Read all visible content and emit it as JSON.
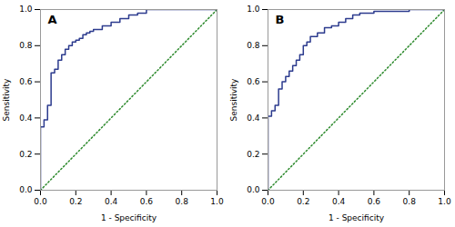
{
  "chart_data": [
    {
      "type": "line",
      "title": "A",
      "xlabel": "1 - Specificity",
      "ylabel": "Sensitivity",
      "xlim": [
        0.0,
        1.0
      ],
      "ylim": [
        0.0,
        1.0
      ],
      "xticks": [
        {
          "value": 0.0,
          "label": "0.0"
        },
        0.2,
        0.4,
        0.6,
        0.8,
        {
          "value": 1.0,
          "label": "1.0"
        }
      ],
      "yticks": [
        {
          "value": 0.0,
          "label": "0.0"
        },
        0.2,
        0.4,
        0.6,
        0.8,
        {
          "value": 1.0,
          "label": "1.0"
        }
      ],
      "grid": false,
      "series": [
        {
          "type": "line",
          "line_style": "dotted",
          "color": "#2d8a2d",
          "x": [
            0,
            1
          ],
          "values": [
            0,
            1
          ]
        },
        {
          "type": "step",
          "line_style": "solid",
          "color": "#2c3b8e",
          "x": [
            0.0,
            0.0,
            0.02,
            0.04,
            0.06,
            0.06,
            0.08,
            0.1,
            0.1,
            0.12,
            0.14,
            0.16,
            0.18,
            0.2,
            0.22,
            0.24,
            0.26,
            0.28,
            0.3,
            0.35,
            0.4,
            0.45,
            0.5,
            0.55,
            0.6,
            1.0
          ],
          "values": [
            0.0,
            0.35,
            0.39,
            0.47,
            0.52,
            0.65,
            0.67,
            0.7,
            0.72,
            0.75,
            0.78,
            0.8,
            0.82,
            0.83,
            0.84,
            0.86,
            0.87,
            0.88,
            0.89,
            0.91,
            0.93,
            0.95,
            0.97,
            0.98,
            1.0,
            1.0
          ]
        }
      ]
    },
    {
      "type": "line",
      "title": "B",
      "xlabel": "1 - Specificity",
      "ylabel": "Sensitivity",
      "xlim": [
        0.0,
        1.0
      ],
      "ylim": [
        0.0,
        1.0
      ],
      "xticks": [
        {
          "value": 0.0,
          "label": "0.0"
        },
        0.2,
        0.4,
        0.6,
        0.8,
        {
          "value": 1.0,
          "label": "1.0"
        }
      ],
      "yticks": [
        {
          "value": 0.0,
          "label": "0.0"
        },
        0.2,
        0.4,
        0.6,
        0.8,
        {
          "value": 1.0,
          "label": "1.0"
        }
      ],
      "grid": false,
      "series": [
        {
          "type": "line",
          "line_style": "dotted",
          "color": "#2d8a2d",
          "x": [
            0,
            1
          ],
          "values": [
            0,
            1
          ]
        },
        {
          "type": "step",
          "line_style": "solid",
          "color": "#2c3b8e",
          "x": [
            0.0,
            0.0,
            0.0,
            0.02,
            0.04,
            0.06,
            0.08,
            0.1,
            0.12,
            0.14,
            0.16,
            0.18,
            0.2,
            0.22,
            0.24,
            0.28,
            0.32,
            0.36,
            0.4,
            0.44,
            0.48,
            0.52,
            0.6,
            0.8,
            1.0
          ],
          "values": [
            0.0,
            0.22,
            0.41,
            0.44,
            0.47,
            0.56,
            0.6,
            0.63,
            0.66,
            0.69,
            0.72,
            0.75,
            0.8,
            0.82,
            0.85,
            0.87,
            0.9,
            0.91,
            0.93,
            0.95,
            0.97,
            0.98,
            0.99,
            1.0,
            1.0
          ]
        }
      ]
    }
  ]
}
